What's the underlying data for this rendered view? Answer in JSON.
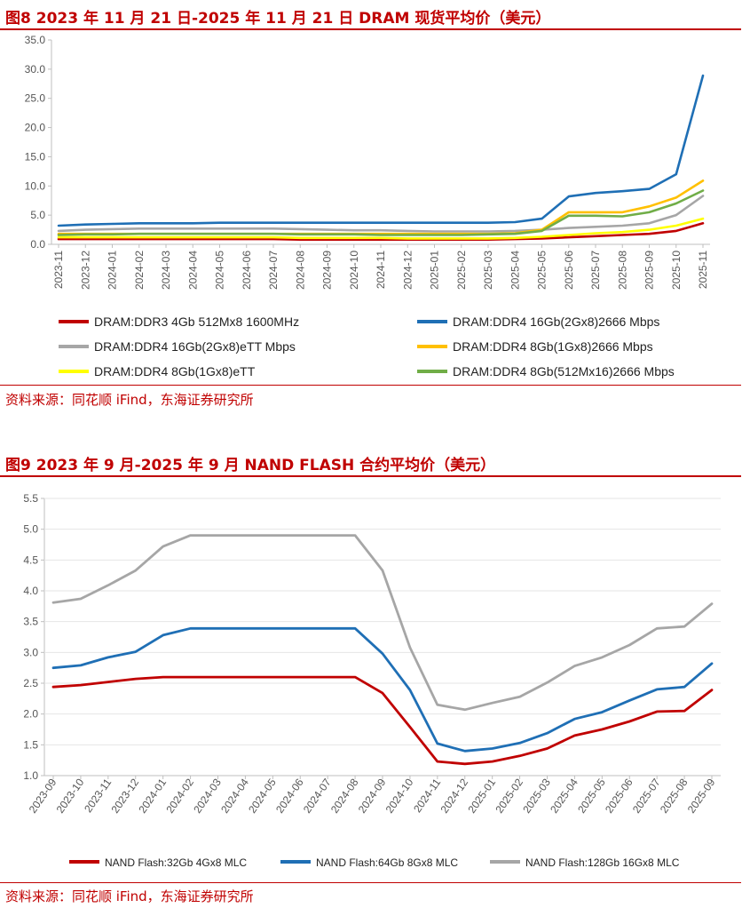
{
  "figures": [
    {
      "title": "图8  2023 年 11 月 21 日-2025 年 11 月 21 日 DRAM 现货平均价（美元）",
      "source": "资料来源：同花顺 iFind，东海证券研究所"
    },
    {
      "title": "图9  2023 年 9 月-2025 年 9 月 NAND FLASH 合约平均价（美元）",
      "source": "资料来源：同花顺 iFind，东海证券研究所"
    }
  ],
  "chart_data": [
    {
      "type": "line",
      "title": "2023 年 11 月 21 日-2025 年 11 月 21 日 DRAM 现货平均价（美元）",
      "ylim": [
        0,
        35
      ],
      "yticks": [
        "0.0",
        "5.0",
        "10.0",
        "15.0",
        "20.0",
        "25.0",
        "30.0",
        "35.0"
      ],
      "categories": [
        "2023-11",
        "2023-12",
        "2024-01",
        "2024-02",
        "2024-03",
        "2024-04",
        "2024-05",
        "2024-06",
        "2024-07",
        "2024-08",
        "2024-09",
        "2024-10",
        "2024-11",
        "2024-12",
        "2025-01",
        "2025-02",
        "2025-03",
        "2025-04",
        "2025-05",
        "2025-06",
        "2025-07",
        "2025-08",
        "2025-09",
        "2025-10",
        "2025-11"
      ],
      "legend_position": "bottom",
      "series": [
        {
          "name": "DRAM:DDR3 4Gb 512Mx8 1600MHz",
          "color": "#c00000",
          "values": [
            0.9,
            0.9,
            0.9,
            0.9,
            0.9,
            0.9,
            0.9,
            0.9,
            0.9,
            0.8,
            0.8,
            0.8,
            0.8,
            0.8,
            0.8,
            0.8,
            0.8,
            0.9,
            1.0,
            1.2,
            1.4,
            1.6,
            1.8,
            2.3,
            3.6
          ]
        },
        {
          "name": "DRAM:DDR4 16Gb(2Gx8)2666 Mbps",
          "color": "#1f6fb5",
          "values": [
            3.2,
            3.4,
            3.5,
            3.6,
            3.6,
            3.6,
            3.7,
            3.7,
            3.7,
            3.7,
            3.7,
            3.7,
            3.7,
            3.7,
            3.7,
            3.7,
            3.7,
            3.8,
            4.4,
            8.2,
            8.8,
            9.1,
            9.5,
            12.0,
            28.9
          ]
        },
        {
          "name": "DRAM:DDR4 16Gb(2Gx8)eTT Mbps",
          "color": "#a6a6a6",
          "values": [
            2.3,
            2.5,
            2.6,
            2.7,
            2.7,
            2.7,
            2.7,
            2.7,
            2.7,
            2.6,
            2.5,
            2.4,
            2.4,
            2.3,
            2.2,
            2.2,
            2.2,
            2.3,
            2.5,
            2.8,
            3.0,
            3.2,
            3.6,
            5.0,
            8.3
          ]
        },
        {
          "name": "DRAM:DDR4 8Gb(1Gx8)2666 Mbps",
          "color": "#ffc000",
          "values": [
            1.8,
            1.8,
            1.8,
            1.8,
            1.8,
            1.8,
            1.8,
            1.8,
            1.8,
            1.8,
            1.8,
            1.8,
            1.8,
            1.8,
            1.8,
            1.8,
            1.8,
            1.9,
            2.5,
            5.5,
            5.5,
            5.5,
            6.5,
            8.0,
            10.9
          ]
        },
        {
          "name": "DRAM:DDR4 8Gb(1Gx8)eTT",
          "color": "#ffff00",
          "values": [
            1.2,
            1.2,
            1.2,
            1.2,
            1.2,
            1.2,
            1.2,
            1.2,
            1.2,
            1.1,
            1.1,
            1.1,
            1.1,
            1.0,
            1.0,
            1.0,
            1.0,
            1.1,
            1.3,
            1.6,
            1.9,
            2.1,
            2.5,
            3.2,
            4.4
          ]
        },
        {
          "name": "DRAM:DDR4 8Gb(512Mx16)2666 Mbps",
          "color": "#70ad47",
          "values": [
            1.6,
            1.7,
            1.7,
            1.8,
            1.8,
            1.8,
            1.8,
            1.8,
            1.8,
            1.7,
            1.7,
            1.7,
            1.6,
            1.6,
            1.6,
            1.6,
            1.7,
            1.8,
            2.3,
            4.9,
            4.9,
            4.8,
            5.5,
            7.0,
            9.2
          ]
        }
      ]
    },
    {
      "type": "line",
      "title": "2023 年 9 月-2025 年 9 月 NAND FLASH 合约平均价（美元）",
      "ylim": [
        1.0,
        5.5
      ],
      "yticks": [
        "1.0",
        "1.5",
        "2.0",
        "2.5",
        "3.0",
        "3.5",
        "4.0",
        "4.5",
        "5.0",
        "5.5"
      ],
      "categories": [
        "2023-09",
        "2023-10",
        "2023-11",
        "2023-12",
        "2024-01",
        "2024-02",
        "2024-03",
        "2024-04",
        "2024-05",
        "2024-06",
        "2024-07",
        "2024-08",
        "2024-09",
        "2024-10",
        "2024-11",
        "2024-12",
        "2025-01",
        "2025-02",
        "2025-03",
        "2025-04",
        "2025-05",
        "2025-06",
        "2025-07",
        "2025-08",
        "2025-09"
      ],
      "legend_position": "bottom",
      "series": [
        {
          "name": "NAND Flash:32Gb 4Gx8 MLC",
          "color": "#c00000",
          "values": [
            2.44,
            2.47,
            2.52,
            2.57,
            2.6,
            2.6,
            2.6,
            2.6,
            2.6,
            2.6,
            2.6,
            2.6,
            2.34,
            1.79,
            1.23,
            1.19,
            1.23,
            1.32,
            1.44,
            1.65,
            1.75,
            1.88,
            2.04,
            2.05,
            2.39
          ]
        },
        {
          "name": "NAND Flash:64Gb 8Gx8 MLC",
          "color": "#1f6fb5",
          "values": [
            2.75,
            2.79,
            2.92,
            3.01,
            3.28,
            3.39,
            3.39,
            3.39,
            3.39,
            3.39,
            3.39,
            3.39,
            2.98,
            2.39,
            1.52,
            1.4,
            1.44,
            1.53,
            1.69,
            1.92,
            2.03,
            2.22,
            2.4,
            2.44,
            2.82
          ]
        },
        {
          "name": "NAND Flash:128Gb 16Gx8 MLC",
          "color": "#a6a6a6",
          "values": [
            3.81,
            3.87,
            4.09,
            4.33,
            4.72,
            4.9,
            4.9,
            4.9,
            4.9,
            4.9,
            4.9,
            4.9,
            4.33,
            3.08,
            2.15,
            2.07,
            2.18,
            2.28,
            2.51,
            2.78,
            2.92,
            3.12,
            3.39,
            3.42,
            3.79
          ]
        }
      ]
    }
  ]
}
